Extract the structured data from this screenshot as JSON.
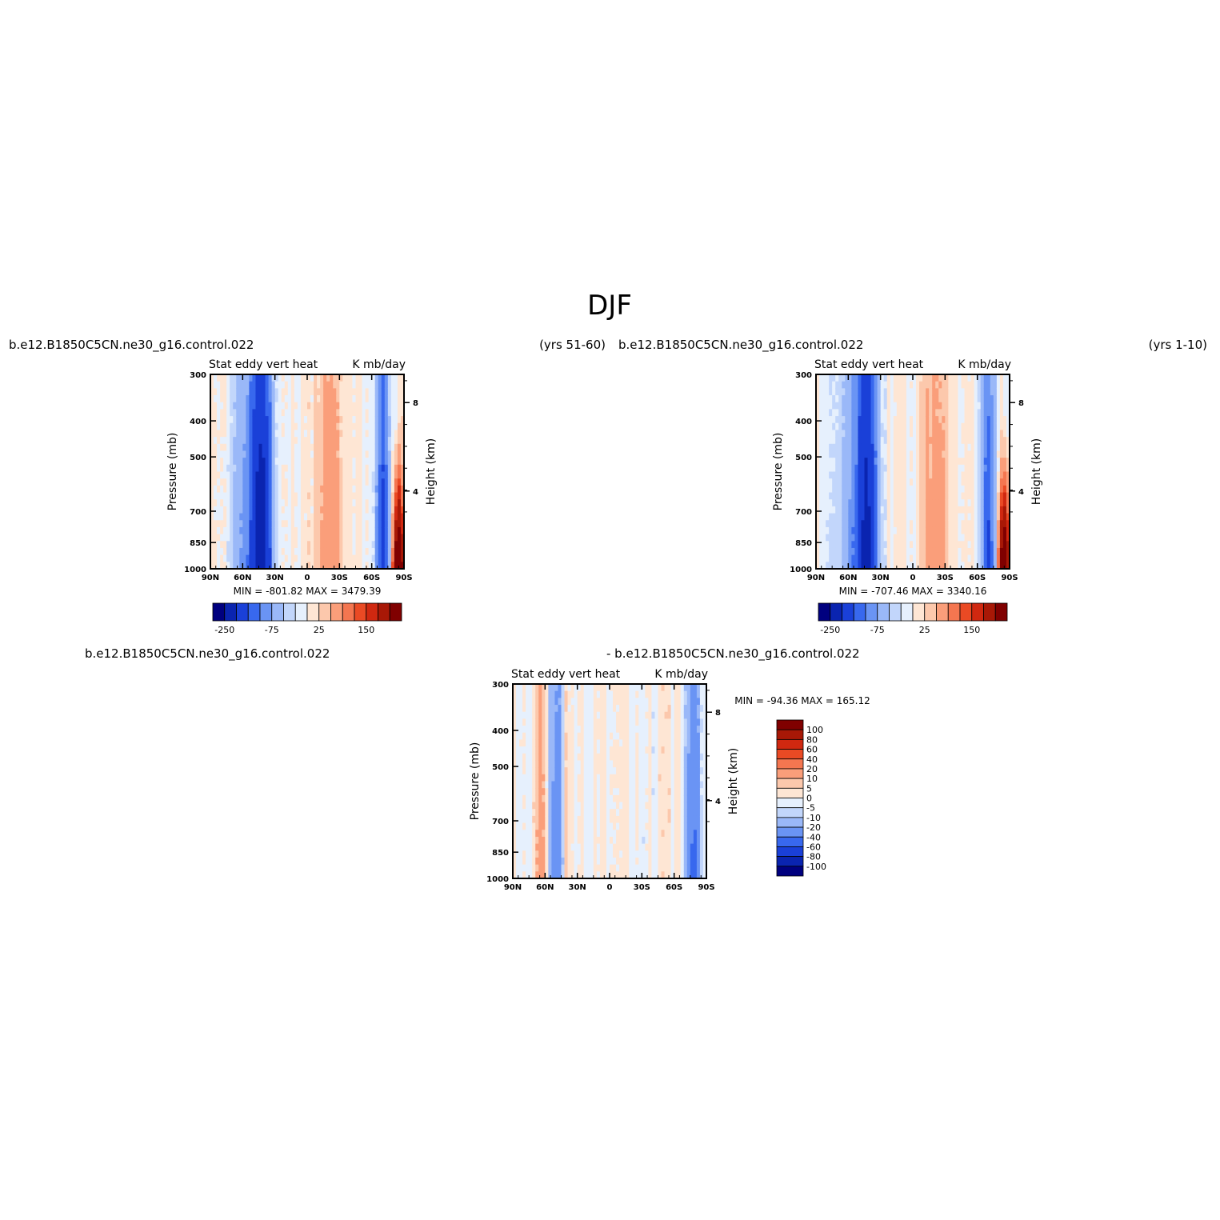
{
  "figure": {
    "title": "DJF"
  },
  "panels": [
    {
      "case_label": "b.e12.B1850C5CN.ne30_g16.control.022",
      "years_label": "(yrs 51-60)",
      "var_left": "Stat eddy vert heat",
      "var_right": "K mb/day",
      "minmax": "MIN = -801.82   MAX = 3479.39"
    },
    {
      "case_label": "b.e12.B1850C5CN.ne30_g16.control.022",
      "years_label": "(yrs 1-10)",
      "var_left": "Stat eddy vert heat",
      "var_right": "K mb/day",
      "minmax": "MIN = -707.46   MAX = 3340.16"
    },
    {
      "case_label": "b.e12.B1850C5CN.ne30_g16.control.022",
      "case_label_2": "- b.e12.B1850C5CN.ne30_g16.control.022",
      "var_left": "Stat eddy vert heat",
      "var_right": "K mb/day",
      "minmax": "MIN = -94.36   MAX = 165.12"
    }
  ],
  "axes": {
    "ylabel": "Pressure (mb)",
    "y2label": "Height (km)",
    "y_ticks": [
      "300",
      "400",
      "500",
      "700",
      "850",
      "1000"
    ],
    "y2_ticks": [
      "8",
      "4"
    ],
    "x_ticks": [
      "90N",
      "60N",
      "30N",
      "0",
      "30S",
      "60S",
      "90S"
    ]
  },
  "colorbars": {
    "horizontal_labels": [
      "-250",
      "-75",
      "25",
      "150"
    ],
    "vertical_labels": [
      "100",
      "80",
      "60",
      "40",
      "20",
      "10",
      "5",
      "0",
      "-5",
      "-10",
      "-20",
      "-40",
      "-60",
      "-80",
      "-100"
    ]
  },
  "colors": {
    "scale_16": [
      "#00007f",
      "#0a24b0",
      "#1a40d8",
      "#3868ee",
      "#6a94f4",
      "#9ab8f8",
      "#c2d6fb",
      "#e6f0fd",
      "#fee6d4",
      "#fcc8ac",
      "#fa9e7a",
      "#f47650",
      "#ea4a24",
      "#d02810",
      "#a81806",
      "#800000"
    ]
  },
  "chart_data": [
    {
      "type": "heatmap",
      "title": "Stat eddy vert heat",
      "units": "K mb/day",
      "xlabel": "",
      "ylabel": "Pressure (mb)",
      "y2label": "Height (km)",
      "x_range": [
        90,
        -90
      ],
      "y_range": [
        1000,
        300
      ],
      "y_scale": "log",
      "min": -801.82,
      "max": 3479.39,
      "colorbar_levels": [
        -250,
        -75,
        25,
        150
      ],
      "features": [
        {
          "lat_center": 44,
          "lat_width": 7,
          "value": -120
        },
        {
          "lat_center": 52,
          "lat_width": 16,
          "value": -60
        },
        {
          "lat_center": 36,
          "lat_width": 5,
          "value": -50
        },
        {
          "lat_center": -20,
          "lat_width": 12,
          "value": 40
        },
        {
          "lat_center": -70,
          "lat_width": 6,
          "value": -100
        },
        {
          "lat_center": -85,
          "lat_width": 4,
          "value": 500
        }
      ]
    },
    {
      "type": "heatmap",
      "title": "Stat eddy vert heat",
      "units": "K mb/day",
      "xlabel": "",
      "ylabel": "Pressure (mb)",
      "y2label": "Height (km)",
      "x_range": [
        90,
        -90
      ],
      "y_range": [
        1000,
        300
      ],
      "y_scale": "log",
      "min": -707.46,
      "max": 3340.16,
      "colorbar_levels": [
        -250,
        -75,
        25,
        150
      ],
      "features": [
        {
          "lat_center": 44,
          "lat_width": 7,
          "value": -110
        },
        {
          "lat_center": 52,
          "lat_width": 16,
          "value": -55
        },
        {
          "lat_center": 36,
          "lat_width": 5,
          "value": -45
        },
        {
          "lat_center": -20,
          "lat_width": 12,
          "value": 35
        },
        {
          "lat_center": -70,
          "lat_width": 6,
          "value": -95
        },
        {
          "lat_center": -85,
          "lat_width": 4,
          "value": 450
        }
      ]
    },
    {
      "type": "heatmap",
      "title": "Stat eddy vert heat",
      "units": "K mb/day",
      "xlabel": "",
      "ylabel": "Pressure (mb)",
      "y2label": "Height (km)",
      "x_range": [
        90,
        -90
      ],
      "y_range": [
        1000,
        300
      ],
      "y_scale": "log",
      "min": -94.36,
      "max": 165.12,
      "colorbar_levels": [
        -100,
        -80,
        -60,
        -40,
        -20,
        -10,
        -5,
        0,
        5,
        10,
        20,
        40,
        60,
        80,
        100
      ],
      "features": [
        {
          "lat_center": 50,
          "lat_width": 6,
          "value": -30
        },
        {
          "lat_center": 64,
          "lat_width": 5,
          "value": 15
        },
        {
          "lat_center": 40,
          "lat_width": 3,
          "value": 10
        },
        {
          "lat_center": -78,
          "lat_width": 6,
          "value": -40
        }
      ]
    }
  ]
}
